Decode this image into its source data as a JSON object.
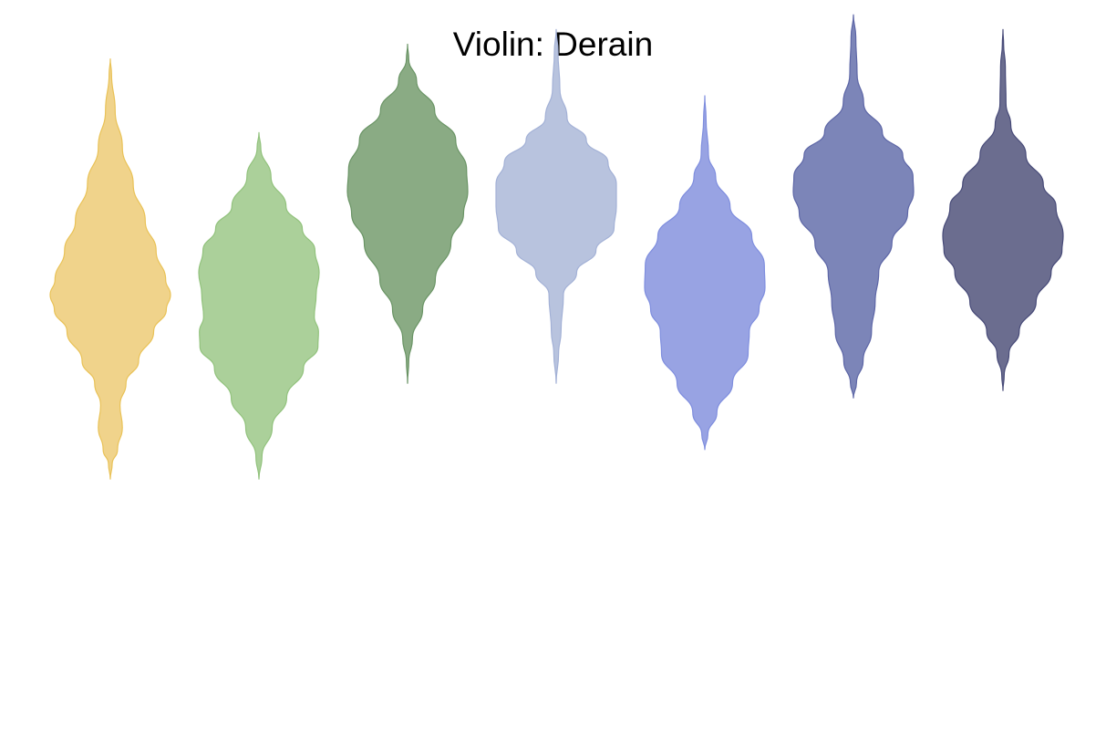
{
  "chart_data": {
    "type": "violin",
    "title": "Violin: Derain",
    "xlabel": "",
    "ylabel": "",
    "axes_visible": false,
    "grid": false,
    "legend": "none",
    "ylim": [
      0,
      100
    ],
    "series": [
      {
        "color": "#f0d38b",
        "stroke": "#e9c257",
        "profile": [
          [
            92,
            0
          ],
          [
            90,
            0.02
          ],
          [
            85,
            0.08
          ],
          [
            80,
            0.2
          ],
          [
            75,
            0.38
          ],
          [
            70,
            0.58
          ],
          [
            66,
            0.76
          ],
          [
            62,
            0.92
          ],
          [
            60,
            1.0
          ],
          [
            58,
            0.93
          ],
          [
            55,
            0.72
          ],
          [
            51,
            0.47
          ],
          [
            48,
            0.26
          ],
          [
            45,
            0.16
          ],
          [
            42,
            0.2
          ],
          [
            39,
            0.12
          ],
          [
            37,
            0.03
          ],
          [
            35,
            0
          ]
        ]
      },
      {
        "color": "#abd09a",
        "stroke": "#92c27d",
        "profile": [
          [
            82,
            0
          ],
          [
            80,
            0.03
          ],
          [
            76,
            0.2
          ],
          [
            72,
            0.45
          ],
          [
            69,
            0.72
          ],
          [
            66,
            0.93
          ],
          [
            63,
            1.0
          ],
          [
            60,
            0.95
          ],
          [
            57,
            0.92
          ],
          [
            55,
            0.99
          ],
          [
            53,
            0.98
          ],
          [
            50,
            0.74
          ],
          [
            46,
            0.46
          ],
          [
            42,
            0.22
          ],
          [
            38,
            0.05
          ],
          [
            35,
            0
          ]
        ]
      },
      {
        "color": "#8aab84",
        "stroke": "#6a9465",
        "profile": [
          [
            94,
            0
          ],
          [
            92,
            0.02
          ],
          [
            89,
            0.15
          ],
          [
            85,
            0.45
          ],
          [
            81,
            0.8
          ],
          [
            77,
            0.98
          ],
          [
            74,
            1.0
          ],
          [
            71,
            0.93
          ],
          [
            67,
            0.72
          ],
          [
            62,
            0.46
          ],
          [
            58,
            0.25
          ],
          [
            54,
            0.08
          ],
          [
            51,
            0.02
          ],
          [
            48,
            0
          ]
        ]
      },
      {
        "color": "#b8c3de",
        "stroke": "#a3b1d6",
        "profile": [
          [
            96,
            0
          ],
          [
            93,
            0.03
          ],
          [
            88,
            0.06
          ],
          [
            84,
            0.18
          ],
          [
            81,
            0.5
          ],
          [
            78,
            0.86
          ],
          [
            75,
            1.0
          ],
          [
            72,
            1.0
          ],
          [
            69,
            0.96
          ],
          [
            66,
            0.66
          ],
          [
            63,
            0.34
          ],
          [
            60,
            0.12
          ],
          [
            55,
            0.08
          ],
          [
            52,
            0.04
          ],
          [
            48,
            0
          ]
        ]
      },
      {
        "color": "#98a3e3",
        "stroke": "#7f8ede",
        "profile": [
          [
            87,
            0
          ],
          [
            84,
            0.02
          ],
          [
            79,
            0.06
          ],
          [
            76,
            0.18
          ],
          [
            72,
            0.42
          ],
          [
            68,
            0.78
          ],
          [
            64,
            0.99
          ],
          [
            61,
            1.0
          ],
          [
            58,
            0.9
          ],
          [
            55,
            0.74
          ],
          [
            52,
            0.72
          ],
          [
            48,
            0.46
          ],
          [
            44,
            0.2
          ],
          [
            41,
            0.05
          ],
          [
            39,
            0
          ]
        ]
      },
      {
        "color": "#7c85b8",
        "stroke": "#5d66a6",
        "profile": [
          [
            98,
            0
          ],
          [
            95,
            0.04
          ],
          [
            90,
            0.06
          ],
          [
            86,
            0.17
          ],
          [
            82,
            0.48
          ],
          [
            79,
            0.82
          ],
          [
            76,
            0.99
          ],
          [
            74,
            1.0
          ],
          [
            71,
            0.9
          ],
          [
            67,
            0.64
          ],
          [
            63,
            0.42
          ],
          [
            59,
            0.36
          ],
          [
            55,
            0.3
          ],
          [
            51,
            0.16
          ],
          [
            48,
            0.05
          ],
          [
            46,
            0
          ]
        ]
      },
      {
        "color": "#6b6d8f",
        "stroke": "#474a78",
        "profile": [
          [
            96,
            0
          ],
          [
            94,
            0.01
          ],
          [
            91,
            0.04
          ],
          [
            86,
            0.05
          ],
          [
            83,
            0.13
          ],
          [
            79,
            0.38
          ],
          [
            75,
            0.67
          ],
          [
            72,
            0.88
          ],
          [
            68,
            1.0
          ],
          [
            66,
            0.98
          ],
          [
            63,
            0.8
          ],
          [
            59,
            0.55
          ],
          [
            55,
            0.27
          ],
          [
            52,
            0.1
          ],
          [
            49,
            0.02
          ],
          [
            47,
            0
          ]
        ]
      }
    ]
  }
}
